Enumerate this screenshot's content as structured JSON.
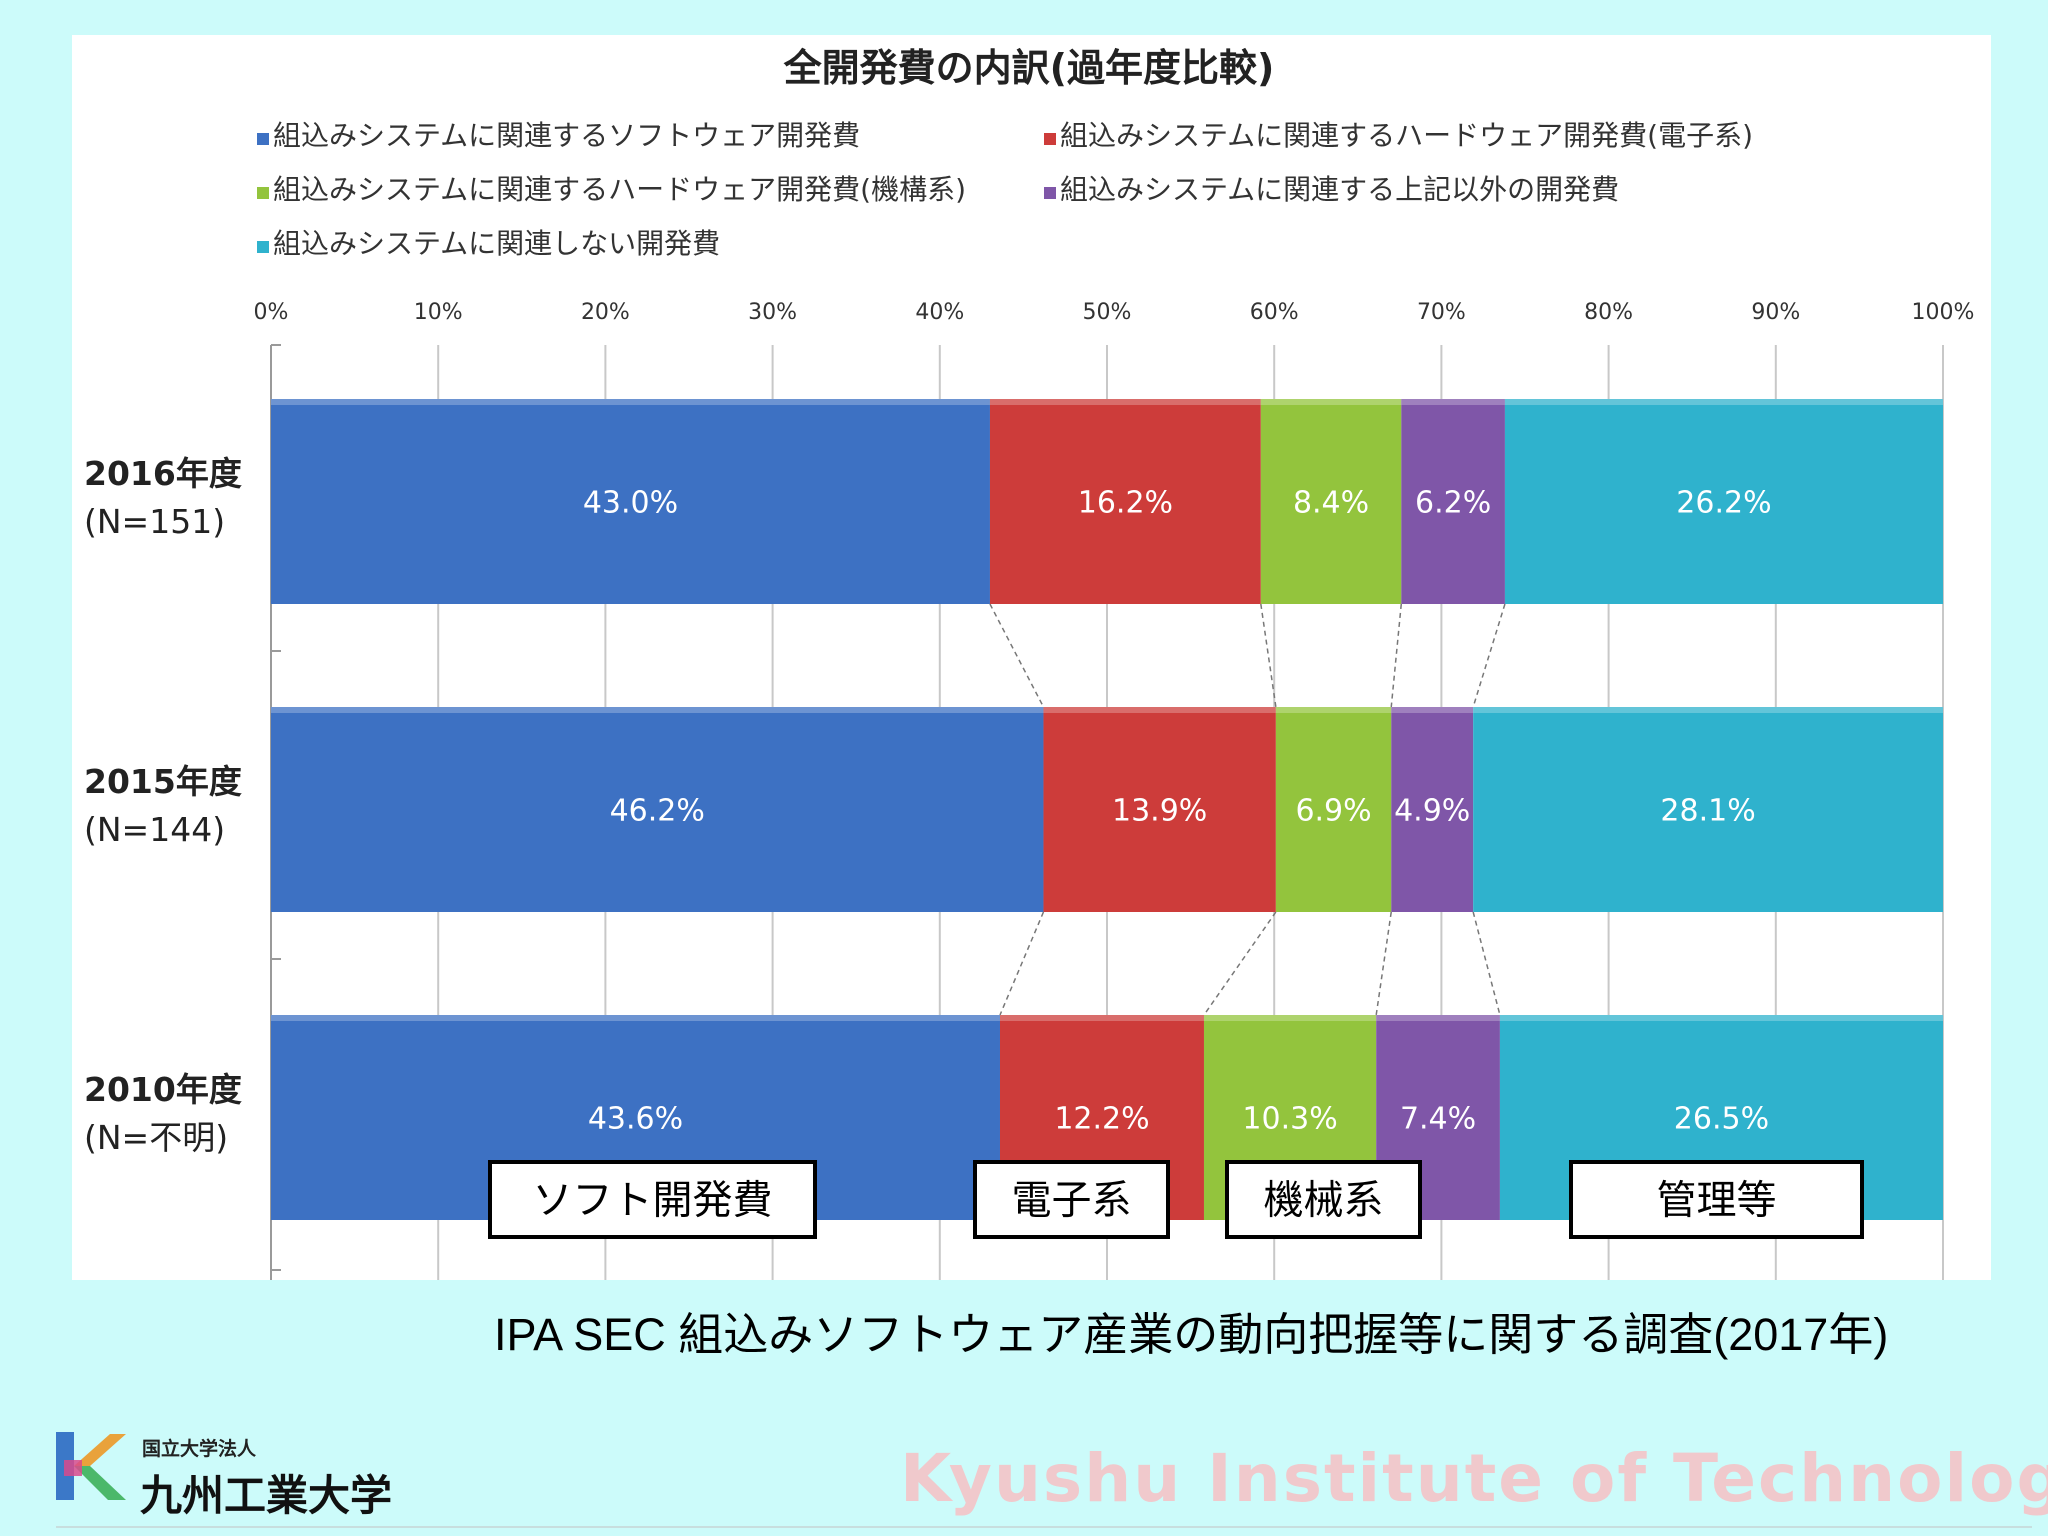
{
  "chart_data": {
    "type": "bar",
    "orientation": "horizontal",
    "stacked": "100%",
    "title": "全開発費の内訳(過年度比較)",
    "categories": [
      {
        "year": "2016年度",
        "n": "(N=151)"
      },
      {
        "year": "2015年度",
        "n": "(N=144)"
      },
      {
        "year": "2010年度",
        "n": "(N=不明)"
      }
    ],
    "series": [
      {
        "name": "組込みシステムに関連するソフトウェア開発費",
        "color": "#3d71c3",
        "values": [
          43.0,
          46.2,
          43.6
        ],
        "labels": [
          "43.0%",
          "46.2%",
          "43.6%"
        ]
      },
      {
        "name": "組込みシステムに関連するハードウェア開発費(電子系)",
        "color": "#cd3c3a",
        "values": [
          16.2,
          13.9,
          12.2
        ],
        "labels": [
          "16.2%",
          "13.9%",
          "12.2%"
        ]
      },
      {
        "name": "組込みシステムに関連するハードウェア開発費(機構系)",
        "color": "#93c43d",
        "values": [
          8.4,
          6.9,
          10.3
        ],
        "labels": [
          "8.4%",
          "6.9%",
          "10.3%"
        ]
      },
      {
        "name": "組込みシステムに関連する上記以外の開発費",
        "color": "#7f56a8",
        "values": [
          6.2,
          4.9,
          7.4
        ],
        "labels": [
          "6.2%",
          "4.9%",
          "7.4%"
        ]
      },
      {
        "name": "組込みシステムに関連しない開発費",
        "color": "#2fb2cd",
        "values": [
          26.2,
          28.1,
          26.5
        ],
        "labels": [
          "26.2%",
          "28.1%",
          "26.5%"
        ]
      }
    ],
    "xaxis": {
      "min": 0,
      "max": 100,
      "ticks": [
        "0%",
        "10%",
        "20%",
        "30%",
        "40%",
        "50%",
        "60%",
        "70%",
        "80%",
        "90%",
        "100%"
      ]
    },
    "grid": true,
    "legend_position": "top",
    "connector_lines": true,
    "annotations": [
      "ソフト開発費",
      "電子系",
      "機械系",
      "管理等"
    ]
  },
  "source": "IPA SEC 組込みソフトウェア産業の動向把握等に関する調査(2017年)",
  "footer": {
    "logo_sub": "国立大学法人",
    "logo_name": "九州工業大学",
    "watermark": "Kyushu Institute of Technology"
  }
}
